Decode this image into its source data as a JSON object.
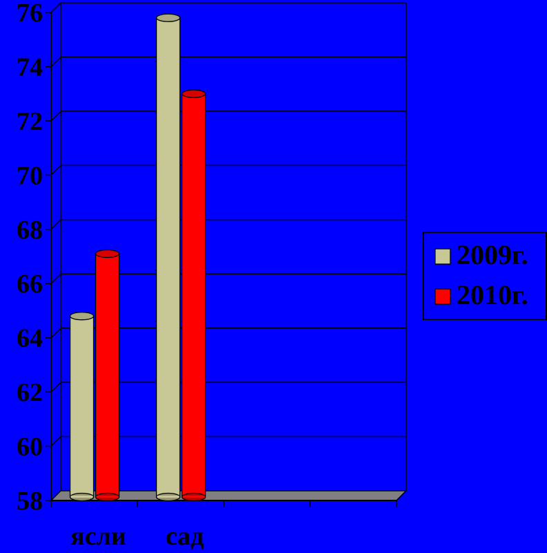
{
  "chart_data": {
    "type": "bar",
    "categories": [
      "ясли",
      "сад"
    ],
    "series": [
      {
        "name": "2009г.",
        "values": [
          64.7,
          75.7
        ]
      },
      {
        "name": "2010г.",
        "values": [
          67.0,
          72.9
        ]
      }
    ],
    "ylim": [
      58,
      76
    ],
    "yticks": [
      "58",
      "60",
      "62",
      "64",
      "66",
      "68",
      "70",
      "72",
      "74",
      "76"
    ],
    "x_slots": 4,
    "grid": true,
    "legend_position": "right",
    "colors": {
      "background": "#0000ff",
      "plot_area": "#0000ff",
      "floor": "#808080",
      "text": "#000000",
      "series": [
        "#c8c896",
        "#ff0000"
      ]
    }
  }
}
